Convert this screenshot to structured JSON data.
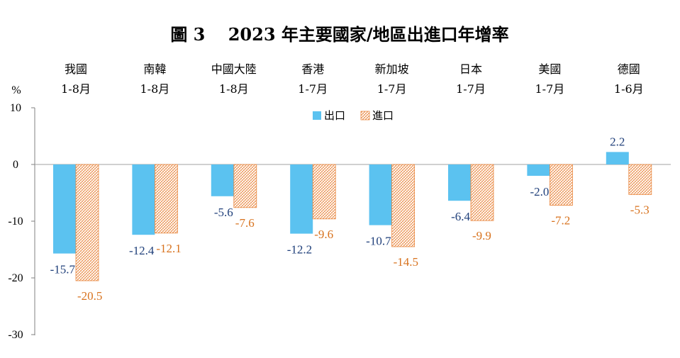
{
  "chart_data": {
    "type": "bar",
    "title": "圖 3　 2023 年主要國家/地區出進口年增率",
    "unit": "%",
    "categories": [
      {
        "name": "我國",
        "period": "1-8月"
      },
      {
        "name": "南韓",
        "period": "1-8月"
      },
      {
        "name": "中國大陸",
        "period": "1-8月"
      },
      {
        "name": "香港",
        "period": "1-7月"
      },
      {
        "name": "新加坡",
        "period": "1-7月"
      },
      {
        "name": "日本",
        "period": "1-7月"
      },
      {
        "name": "美國",
        "period": "1-7月"
      },
      {
        "name": "德國",
        "period": "1-6月"
      }
    ],
    "series": [
      {
        "name": "出口",
        "color": "#5bc2f0",
        "label_color": "#1f3f7a",
        "values": [
          -15.7,
          -12.4,
          -5.6,
          -12.2,
          -10.7,
          -6.4,
          -2.0,
          2.2
        ],
        "labels": [
          "-15.7",
          "-12.4",
          "-5.6",
          "-12.2",
          "-10.7",
          "-6.4",
          "-2.0",
          "2.2"
        ]
      },
      {
        "name": "進口",
        "color": "#e9873f",
        "label_color": "#d8731f",
        "pattern": "hatched",
        "values": [
          -20.5,
          -12.1,
          -7.6,
          -9.6,
          -14.5,
          -9.9,
          -7.2,
          -5.3
        ],
        "labels": [
          "-20.5",
          "-12.1",
          "-7.6",
          "-9.6",
          "-14.5",
          "-9.9",
          "-7.2",
          "-5.3"
        ]
      }
    ],
    "y_ticks": [
      10,
      0,
      -10,
      -20,
      -30
    ],
    "ylim": [
      -30,
      10
    ],
    "grid": false,
    "legend_position": "top-center"
  }
}
